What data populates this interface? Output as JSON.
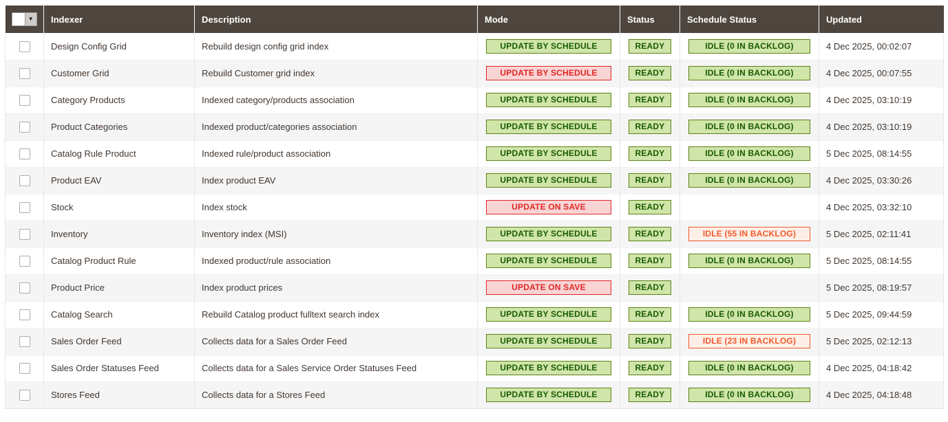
{
  "table": {
    "columns": [
      {
        "key": "indexer",
        "label": "Indexer"
      },
      {
        "key": "description",
        "label": "Description"
      },
      {
        "key": "mode",
        "label": "Mode"
      },
      {
        "key": "status",
        "label": "Status"
      },
      {
        "key": "schedule_status",
        "label": "Schedule Status"
      },
      {
        "key": "updated",
        "label": "Updated"
      }
    ],
    "rows": [
      {
        "indexer": "Design Config Grid",
        "description": "Rebuild design config grid index",
        "mode": {
          "label": "UPDATE BY SCHEDULE",
          "severity": "notice"
        },
        "status": {
          "label": "READY",
          "severity": "notice"
        },
        "schedule_status": {
          "label": "IDLE (0 IN BACKLOG)",
          "severity": "notice"
        },
        "updated": "4 Dec 2025, 00:02:07"
      },
      {
        "indexer": "Customer Grid",
        "description": "Rebuild Customer grid index",
        "mode": {
          "label": "UPDATE BY SCHEDULE",
          "severity": "critical"
        },
        "status": {
          "label": "READY",
          "severity": "notice"
        },
        "schedule_status": {
          "label": "IDLE (0 IN BACKLOG)",
          "severity": "notice"
        },
        "updated": "4 Dec 2025, 00:07:55"
      },
      {
        "indexer": "Category Products",
        "description": "Indexed category/products association",
        "mode": {
          "label": "UPDATE BY SCHEDULE",
          "severity": "notice"
        },
        "status": {
          "label": "READY",
          "severity": "notice"
        },
        "schedule_status": {
          "label": "IDLE (0 IN BACKLOG)",
          "severity": "notice"
        },
        "updated": "4 Dec 2025, 03:10:19"
      },
      {
        "indexer": "Product Categories",
        "description": "Indexed product/categories association",
        "mode": {
          "label": "UPDATE BY SCHEDULE",
          "severity": "notice"
        },
        "status": {
          "label": "READY",
          "severity": "notice"
        },
        "schedule_status": {
          "label": "IDLE (0 IN BACKLOG)",
          "severity": "notice"
        },
        "updated": "4 Dec 2025, 03:10:19"
      },
      {
        "indexer": "Catalog Rule Product",
        "description": "Indexed rule/product association",
        "mode": {
          "label": "UPDATE BY SCHEDULE",
          "severity": "notice"
        },
        "status": {
          "label": "READY",
          "severity": "notice"
        },
        "schedule_status": {
          "label": "IDLE (0 IN BACKLOG)",
          "severity": "notice"
        },
        "updated": "5 Dec 2025, 08:14:55"
      },
      {
        "indexer": "Product EAV",
        "description": "Index product EAV",
        "mode": {
          "label": "UPDATE BY SCHEDULE",
          "severity": "notice"
        },
        "status": {
          "label": "READY",
          "severity": "notice"
        },
        "schedule_status": {
          "label": "IDLE (0 IN BACKLOG)",
          "severity": "notice"
        },
        "updated": "4 Dec 2025, 03:30:26"
      },
      {
        "indexer": "Stock",
        "description": "Index stock",
        "mode": {
          "label": "UPDATE ON SAVE",
          "severity": "critical"
        },
        "status": {
          "label": "READY",
          "severity": "notice"
        },
        "schedule_status": null,
        "updated": "4 Dec 2025, 03:32:10"
      },
      {
        "indexer": "Inventory",
        "description": "Inventory index (MSI)",
        "mode": {
          "label": "UPDATE BY SCHEDULE",
          "severity": "notice"
        },
        "status": {
          "label": "READY",
          "severity": "notice"
        },
        "schedule_status": {
          "label": "IDLE (55 IN BACKLOG)",
          "severity": "minor"
        },
        "updated": "5 Dec 2025, 02:11:41"
      },
      {
        "indexer": "Catalog Product Rule",
        "description": "Indexed product/rule association",
        "mode": {
          "label": "UPDATE BY SCHEDULE",
          "severity": "notice"
        },
        "status": {
          "label": "READY",
          "severity": "notice"
        },
        "schedule_status": {
          "label": "IDLE (0 IN BACKLOG)",
          "severity": "notice"
        },
        "updated": "5 Dec 2025, 08:14:55"
      },
      {
        "indexer": "Product Price",
        "description": "Index product prices",
        "mode": {
          "label": "UPDATE ON SAVE",
          "severity": "critical"
        },
        "status": {
          "label": "READY",
          "severity": "notice"
        },
        "schedule_status": null,
        "updated": "5 Dec 2025, 08:19:57"
      },
      {
        "indexer": "Catalog Search",
        "description": "Rebuild Catalog product fulltext search index",
        "mode": {
          "label": "UPDATE BY SCHEDULE",
          "severity": "notice"
        },
        "status": {
          "label": "READY",
          "severity": "notice"
        },
        "schedule_status": {
          "label": "IDLE (0 IN BACKLOG)",
          "severity": "notice"
        },
        "updated": "5 Dec 2025, 09:44:59"
      },
      {
        "indexer": "Sales Order Feed",
        "description": "Collects data for a Sales Order Feed",
        "mode": {
          "label": "UPDATE BY SCHEDULE",
          "severity": "notice"
        },
        "status": {
          "label": "READY",
          "severity": "notice"
        },
        "schedule_status": {
          "label": "IDLE (23 IN BACKLOG)",
          "severity": "minor"
        },
        "updated": "5 Dec 2025, 02:12:13"
      },
      {
        "indexer": "Sales Order Statuses Feed",
        "description": "Collects data for a Sales Service Order Statuses Feed",
        "mode": {
          "label": "UPDATE BY SCHEDULE",
          "severity": "notice"
        },
        "status": {
          "label": "READY",
          "severity": "notice"
        },
        "schedule_status": {
          "label": "IDLE (0 IN BACKLOG)",
          "severity": "notice"
        },
        "updated": "4 Dec 2025, 04:18:42"
      },
      {
        "indexer": "Stores Feed",
        "description": "Collects data for a Stores Feed",
        "mode": {
          "label": "UPDATE BY SCHEDULE",
          "severity": "notice"
        },
        "status": {
          "label": "READY",
          "severity": "notice"
        },
        "schedule_status": {
          "label": "IDLE (0 IN BACKLOG)",
          "severity": "notice"
        },
        "updated": "4 Dec 2025, 04:18:48"
      }
    ]
  },
  "icons": {
    "select_all_caret": "caret-down-icon"
  },
  "colors": {
    "header_bg": "#4d453e",
    "row_alt_bg": "#f5f5f5",
    "text": "#41362f",
    "severity_notice_bg": "#d0e5a9",
    "severity_notice_fg": "#185b00",
    "severity_notice_border": "#5b8116",
    "severity_critical_bg": "#f9d4d4",
    "severity_critical_fg": "#e22626",
    "severity_minor_bg": "#fdefe7",
    "severity_minor_fg": "#f1592a"
  }
}
